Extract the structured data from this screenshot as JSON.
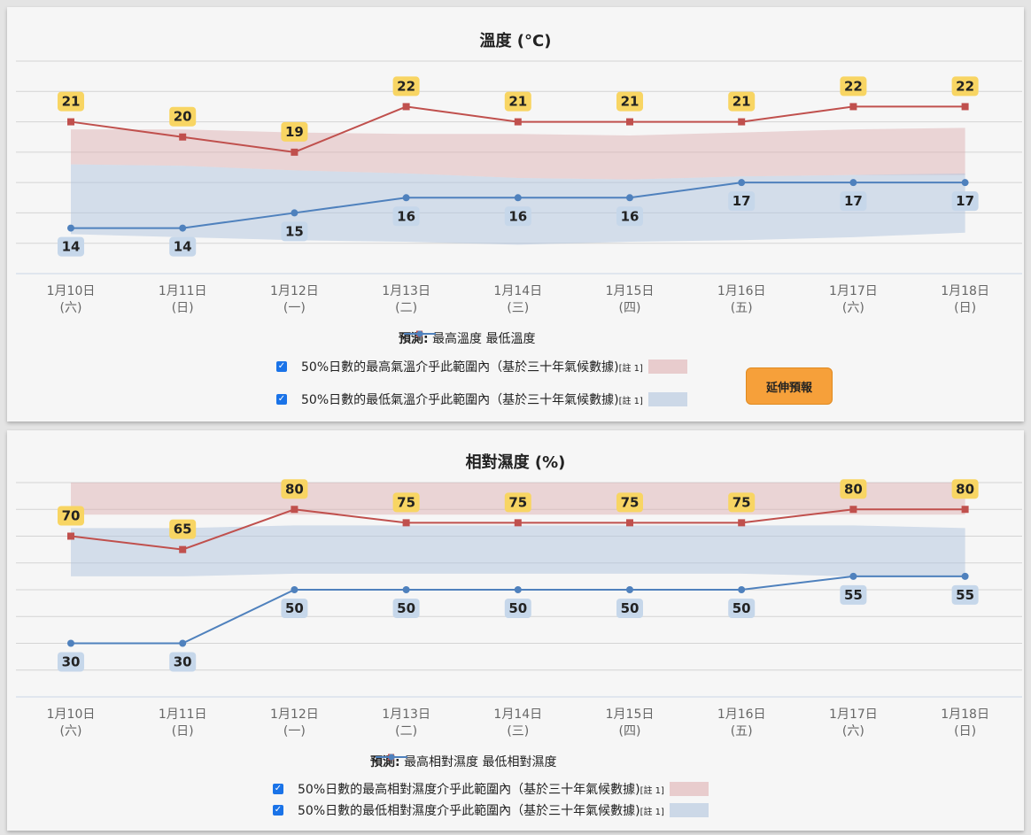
{
  "colors": {
    "max_line": "#c0504d",
    "min_line": "#4f81bd",
    "max_band": "rgba(220,170,172,0.45)",
    "min_band": "rgba(176,196,222,0.5)",
    "label_max_bg": "#f8d563",
    "label_min_bg": "#c6d7ea",
    "temp_title": "#e8742a",
    "hum_title": "#1f9ad6",
    "button": "#f6a03a"
  },
  "temperature": {
    "title": "溫度 (°C)",
    "legend": {
      "prefix": "預測:",
      "max_label": "最高溫度",
      "min_label": "最低溫度",
      "band_max_text": "50%日數的最高氣溫介乎此範圍內（基於三十年氣候數據)",
      "band_min_text": "50%日數的最低氣溫介乎此範圍內（基於三十年氣候數據)",
      "note": "[註 1]"
    },
    "button_label": "延伸預報"
  },
  "humidity": {
    "title": "相對濕度 (%)",
    "legend": {
      "prefix": "預測:",
      "max_label": "最高相對濕度",
      "min_label": "最低相對濕度",
      "band_max_text": "50%日數的最高相對濕度介乎此範圍內（基於三十年氣候數據)",
      "band_min_text": "50%日數的最低相對濕度介乎此範圍內（基於三十年氣候數據)",
      "note": "[註 1]"
    }
  },
  "chart_data": [
    {
      "type": "line",
      "title": "溫度 (°C)",
      "categories": [
        "1月10日",
        "1月11日",
        "1月12日",
        "1月13日",
        "1月14日",
        "1月15日",
        "1月16日",
        "1月17日",
        "1月18日"
      ],
      "weekdays": [
        "(六)",
        "(日)",
        "(一)",
        "(二)",
        "(三)",
        "(四)",
        "(五)",
        "(六)",
        "(日)"
      ],
      "series": [
        {
          "name": "最高溫度",
          "values": [
            21,
            20,
            19,
            22,
            21,
            21,
            21,
            22,
            22
          ]
        },
        {
          "name": "最低溫度",
          "values": [
            14,
            14,
            15,
            16,
            16,
            16,
            17,
            17,
            17
          ]
        }
      ],
      "bands": [
        {
          "upper": [
            20.5,
            20.5,
            20.3,
            20.2,
            20.2,
            20.1,
            20.3,
            20.5,
            20.6
          ],
          "lower": [
            18.2,
            18.1,
            17.8,
            17.6,
            17.3,
            17.2,
            17.4,
            17.5,
            17.5
          ]
        },
        {
          "upper": [
            18.2,
            18.1,
            17.8,
            17.6,
            17.3,
            17.2,
            17.4,
            17.5,
            17.6
          ],
          "lower": [
            13.6,
            13.4,
            13.2,
            13.1,
            12.9,
            13.1,
            13.2,
            13.4,
            13.7
          ]
        }
      ],
      "ylim": [
        11,
        25
      ],
      "grid": true
    },
    {
      "type": "line",
      "title": "相對濕度 (%)",
      "categories": [
        "1月10日",
        "1月11日",
        "1月12日",
        "1月13日",
        "1月14日",
        "1月15日",
        "1月16日",
        "1月17日",
        "1月18日"
      ],
      "weekdays": [
        "(六)",
        "(日)",
        "(一)",
        "(二)",
        "(三)",
        "(四)",
        "(五)",
        "(六)",
        "(日)"
      ],
      "series": [
        {
          "name": "最高相對濕度",
          "values": [
            70,
            65,
            80,
            75,
            75,
            75,
            75,
            80,
            80
          ]
        },
        {
          "name": "最低相對濕度",
          "values": [
            30,
            30,
            50,
            50,
            50,
            50,
            50,
            55,
            55
          ]
        }
      ],
      "bands": [
        {
          "upper": [
            90,
            90,
            90,
            90,
            90,
            90,
            90,
            90,
            90
          ],
          "lower": [
            78,
            78,
            78,
            78,
            78,
            78,
            78,
            78,
            78
          ]
        },
        {
          "upper": [
            73,
            73,
            74,
            74,
            74,
            74,
            74,
            74,
            73
          ],
          "lower": [
            55,
            55,
            56,
            56,
            56,
            56,
            56,
            55,
            55
          ]
        }
      ],
      "ylim": [
        10,
        90
      ],
      "grid": true
    }
  ]
}
